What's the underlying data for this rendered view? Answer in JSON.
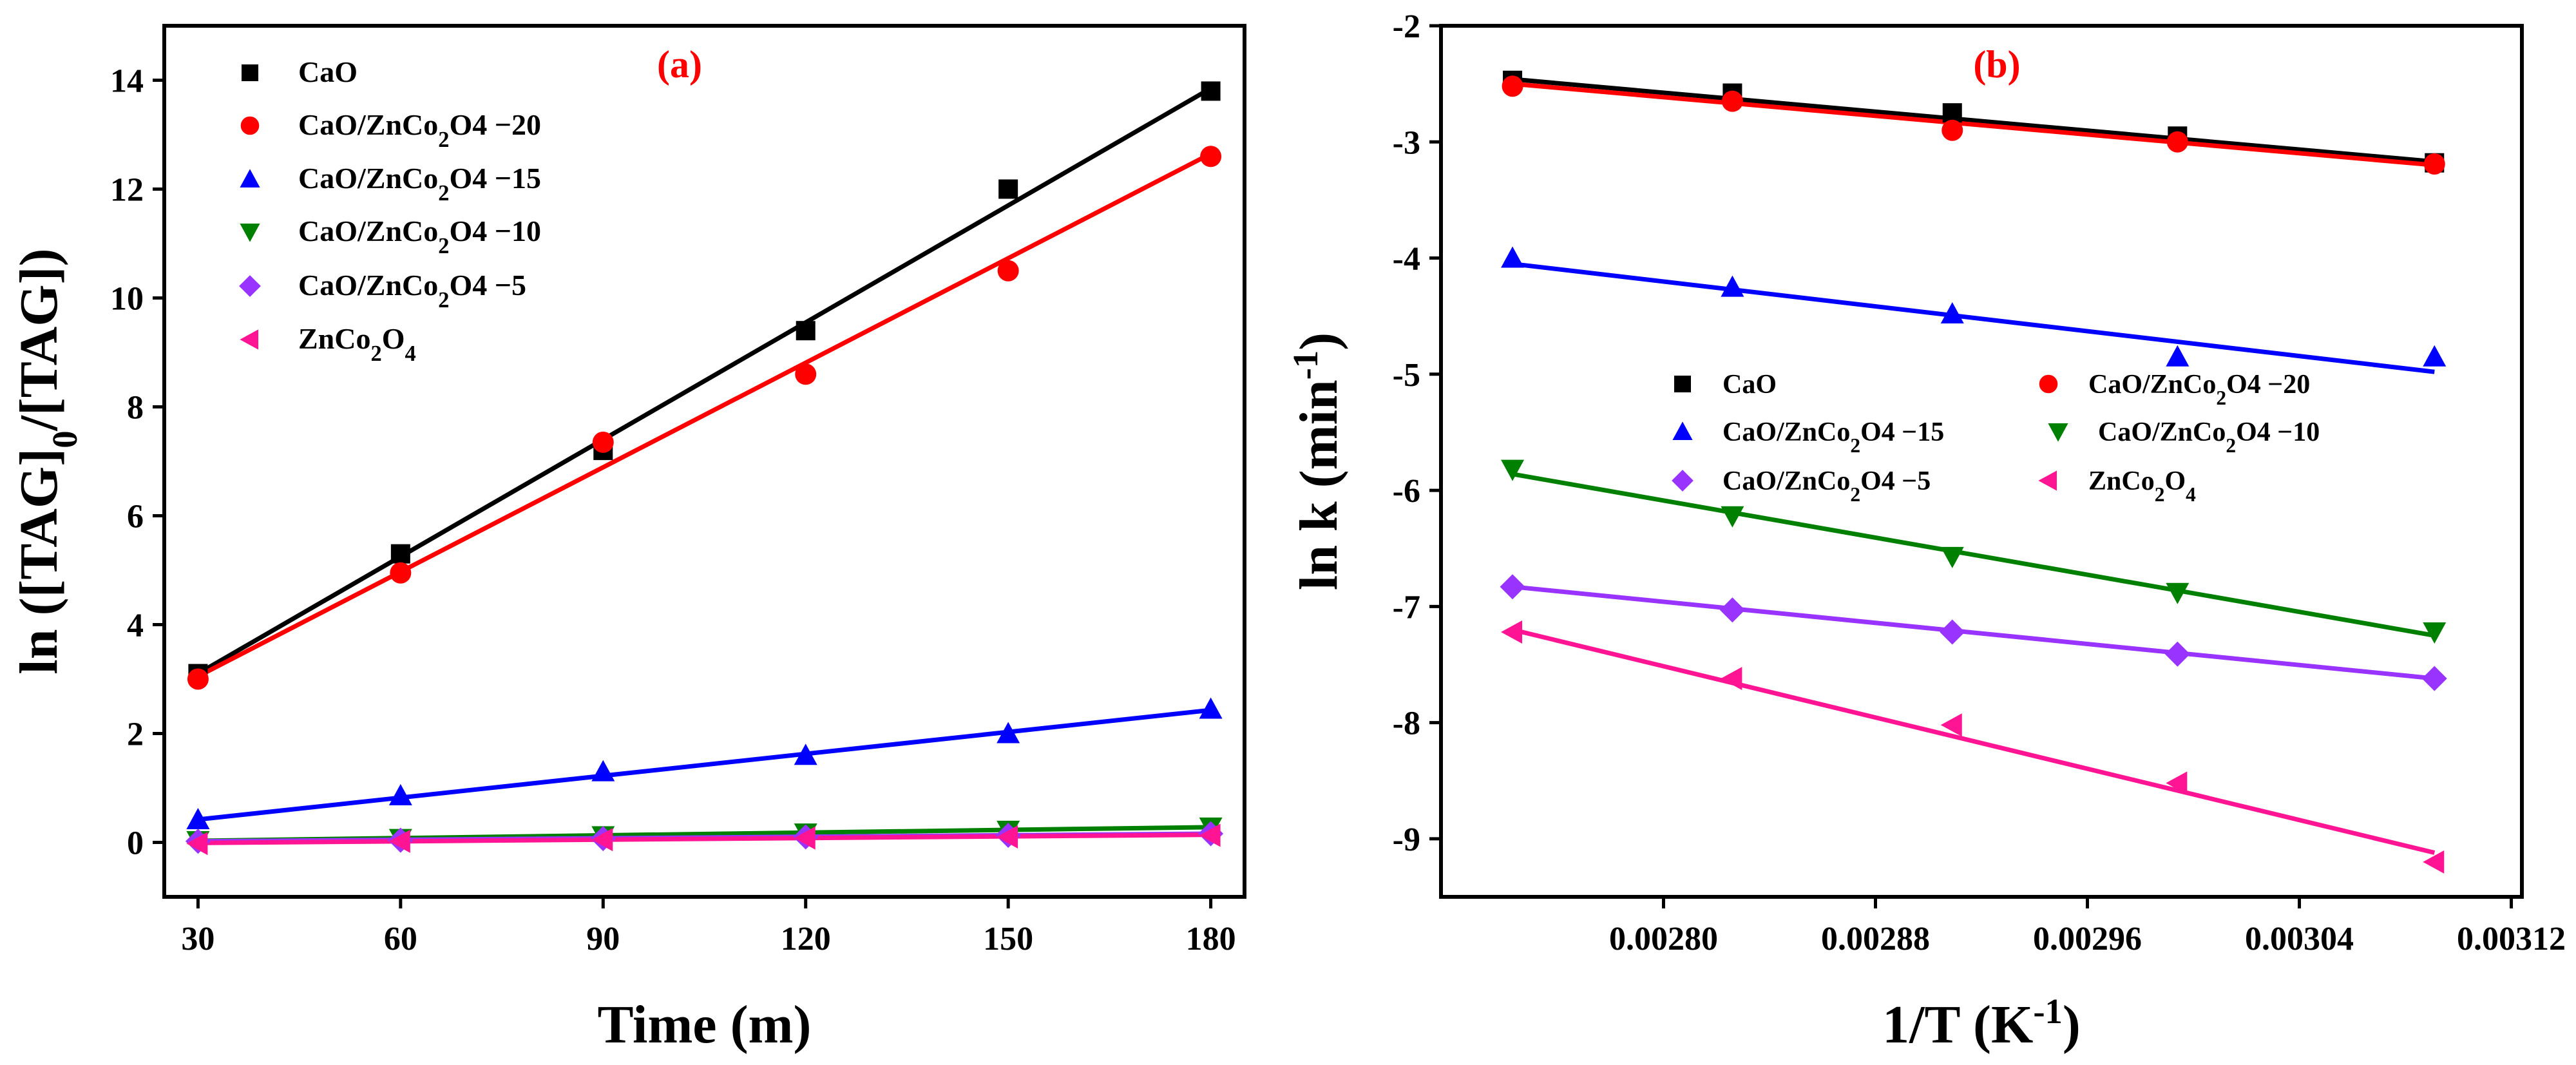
{
  "chart_data": [
    {
      "type": "scatter",
      "panel_label": "(a)",
      "xlabel": "Time (m)",
      "ylabel": "ln ([TAG]0/[TAG])",
      "ylabel_parts": {
        "pre": "ln ([TAG]",
        "sub": "0",
        "post": "/[TAG])"
      },
      "xlim": [
        25,
        185
      ],
      "ylim": [
        -1,
        15
      ],
      "xticks": [
        30,
        60,
        90,
        120,
        150,
        180
      ],
      "yticks": [
        0,
        2,
        4,
        6,
        8,
        10,
        12,
        14
      ],
      "x": [
        30,
        60,
        90,
        120,
        150,
        180
      ],
      "legend_position": "top-left",
      "series": [
        {
          "name": "CaO",
          "name_parts": {
            "pre": "CaO"
          },
          "color": "#000000",
          "marker": "square",
          "values": [
            3.1,
            5.3,
            7.2,
            9.4,
            12.0,
            13.8
          ],
          "fit": [
            3.1,
            13.85
          ]
        },
        {
          "name": "CaO/ZnCo2O4 −20",
          "name_parts": {
            "pre": "CaO/ZnCo",
            "s1": "2",
            "mid": "O4 −20"
          },
          "color": "#ff0000",
          "marker": "circle",
          "values": [
            3.0,
            4.95,
            7.35,
            8.6,
            10.5,
            12.6
          ],
          "fit": [
            3.05,
            12.65
          ]
        },
        {
          "name": "CaO/ZnCo2O4 −15",
          "name_parts": {
            "pre": "CaO/ZnCo",
            "s1": "2",
            "mid": "O4 −15"
          },
          "color": "#0000ff",
          "marker": "triangle-up",
          "values": [
            0.42,
            0.86,
            1.3,
            1.6,
            2.0,
            2.45
          ],
          "fit": [
            0.42,
            2.43
          ]
        },
        {
          "name": "CaO/ZnCo2O4 −10",
          "name_parts": {
            "pre": "CaO/ZnCo",
            "s1": "2",
            "mid": "O4 −10"
          },
          "color": "#008000",
          "marker": "triangle-down",
          "values": [
            0.03,
            0.07,
            0.12,
            0.17,
            0.22,
            0.28
          ],
          "fit": [
            0.03,
            0.28
          ]
        },
        {
          "name": "CaO/ZnCo2O4 −5",
          "name_parts": {
            "pre": "CaO/ZnCo",
            "s1": "2",
            "mid": "O4 −5"
          },
          "color": "#9933ff",
          "marker": "diamond",
          "values": [
            0.02,
            0.04,
            0.07,
            0.1,
            0.13,
            0.16
          ],
          "fit": [
            0.02,
            0.16
          ]
        },
        {
          "name": "ZnCo2O4",
          "name_parts": {
            "pre": "ZnCo",
            "s1": "2",
            "mid": "O",
            "s2": "4"
          },
          "color": "#ff1493",
          "marker": "triangle-left",
          "values": [
            -0.02,
            0.02,
            0.05,
            0.08,
            0.1,
            0.13
          ],
          "fit": [
            -0.01,
            0.14
          ]
        }
      ]
    },
    {
      "type": "scatter",
      "panel_label": "(b)",
      "xlabel": "1/T (K-1)",
      "xlabel_parts": {
        "pre": "1/T (K",
        "sup": "-1",
        "post": ")"
      },
      "ylabel": "ln k (min-1)",
      "ylabel_parts": {
        "pre": "ln k (min",
        "sup": "-1",
        "post": ")"
      },
      "xlim": [
        0.002716,
        0.003124
      ],
      "ylim": [
        -9.5,
        -2
      ],
      "xticks": [
        "0.00280",
        "0.00288",
        "0.00296",
        "0.00304",
        "0.00312"
      ],
      "yticks": [
        -2,
        -3,
        -4,
        -5,
        -6,
        -7,
        -8,
        -9
      ],
      "x": [
        0.002743,
        0.002826,
        0.002909,
        0.002994,
        0.003091
      ],
      "legend_position": "center-right",
      "series": [
        {
          "name": "CaO",
          "name_parts": {
            "pre": "CaO"
          },
          "color": "#000000",
          "marker": "square",
          "values": [
            -2.47,
            -2.58,
            -2.75,
            -2.95,
            -3.18
          ],
          "fit": [
            -2.46,
            -3.17
          ]
        },
        {
          "name": "CaO/ZnCo2O4 −20",
          "name_parts": {
            "pre": "CaO/ZnCo",
            "s1": "2",
            "mid": "O4 −20"
          },
          "color": "#ff0000",
          "marker": "circle",
          "values": [
            -2.52,
            -2.65,
            -2.9,
            -3.0,
            -3.19
          ],
          "fit": [
            -2.5,
            -3.2
          ]
        },
        {
          "name": "CaO/ZnCo2O4 −15",
          "name_parts": {
            "pre": "CaO/ZnCo",
            "s1": "2",
            "mid": "O4 −15"
          },
          "color": "#0000ff",
          "marker": "triangle-up",
          "values": [
            -4.0,
            -4.25,
            -4.48,
            -4.85,
            -4.85
          ],
          "fit": [
            -4.05,
            -4.98
          ]
        },
        {
          "name": "CaO/ZnCo2O4 −10",
          "name_parts": {
            "pre": "CaO/ZnCo",
            "s1": "2",
            "mid": "O4 −10"
          },
          "color": "#008000",
          "marker": "triangle-down",
          "values": [
            -5.82,
            -6.22,
            -6.57,
            -6.88,
            -7.22
          ],
          "fit": [
            -5.86,
            -7.25
          ]
        },
        {
          "name": "CaO/ZnCo2O4 −5",
          "name_parts": {
            "pre": "CaO/ZnCo",
            "s1": "2",
            "mid": "O4 −5"
          },
          "color": "#9933ff",
          "marker": "diamond",
          "values": [
            -6.83,
            -7.03,
            -7.22,
            -7.41,
            -7.62
          ],
          "fit": [
            -6.83,
            -7.62
          ]
        },
        {
          "name": "ZnCo2O4",
          "name_parts": {
            "pre": "ZnCo",
            "s1": "2",
            "mid": "O",
            "s2": "4"
          },
          "color": "#ff1493",
          "marker": "triangle-left",
          "values": [
            -7.22,
            -7.62,
            -8.02,
            -8.52,
            -9.2
          ],
          "fit": [
            -7.2,
            -9.12
          ]
        }
      ]
    }
  ]
}
